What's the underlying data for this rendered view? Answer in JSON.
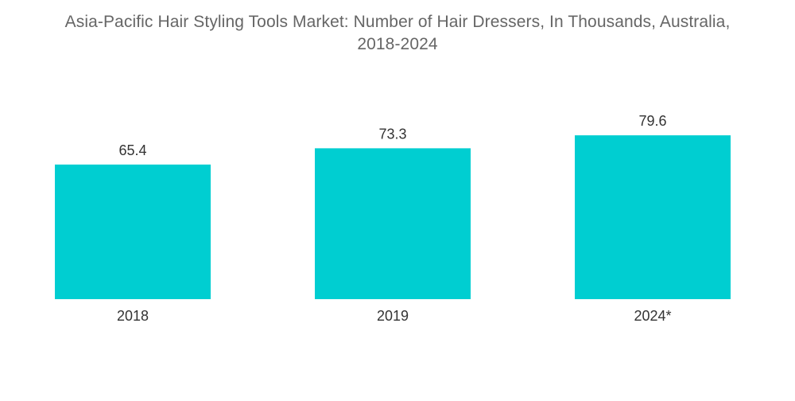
{
  "chart_data": {
    "type": "bar",
    "title_line1": "Asia-Pacific Hair Styling Tools Market: Number of Hair Dressers, In Thousands, Australia,",
    "title_line2": "2018-2024",
    "categories": [
      "2018",
      "2019",
      "2024*"
    ],
    "values": [
      65.4,
      73.3,
      79.6
    ],
    "value_labels": [
      "65.4",
      "73.3",
      "79.6"
    ],
    "xlabel": "",
    "ylabel": "",
    "grid": false,
    "legend": "none",
    "bar_color": "#00CED1"
  }
}
